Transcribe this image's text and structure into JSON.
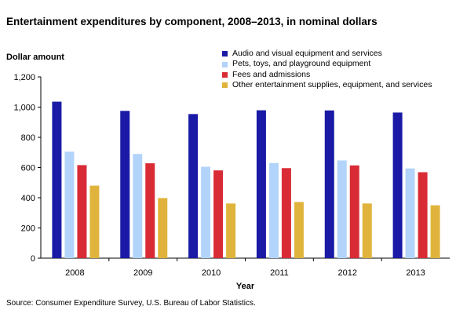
{
  "chart_data": {
    "type": "bar",
    "title": "Entertainment expenditures by component, 2008–2013, in nominal dollars",
    "ylabel": "Dollar amount",
    "xlabel": "Year",
    "categories": [
      "2008",
      "2009",
      "2010",
      "2011",
      "2012",
      "2013"
    ],
    "ylim": [
      0,
      1200
    ],
    "yticks": [
      0,
      200,
      400,
      600,
      800,
      1000,
      1200
    ],
    "ytick_labels": [
      "0",
      "200",
      "400",
      "600",
      "800",
      "1,000",
      "1,200"
    ],
    "grid": false,
    "legend_position": "top-right",
    "series": [
      {
        "name": "Audio and visual equipment and services",
        "color": "#1a1aa6",
        "values": [
          1036,
          975,
          954,
          979,
          978,
          964
        ]
      },
      {
        "name": "Pets, toys, and playground equipment",
        "color": "#b3d4fa",
        "values": [
          705,
          690,
          605,
          630,
          647,
          594
        ]
      },
      {
        "name": "Fees and admissions",
        "color": "#d92b36",
        "values": [
          616,
          628,
          581,
          596,
          614,
          569
        ]
      },
      {
        "name": "Other entertainment supplies, equipment, and services",
        "color": "#e0b43c",
        "values": [
          480,
          398,
          362,
          372,
          362,
          350
        ]
      }
    ],
    "source": "Source: Consumer Expenditure Survey, U.S. Bureau of Labor Statistics."
  }
}
